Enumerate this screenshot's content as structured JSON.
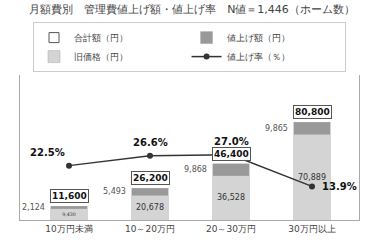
{
  "chart_data": {
    "type": "bar",
    "title": "月額費別　管理費値上げ額・値上げ率　N値＝1,446（ホーム数）",
    "categories": [
      "10万円未満",
      "10～20万円",
      "20～30万円",
      "30万円以上"
    ],
    "stacked": true,
    "data_labels": true,
    "grid": false,
    "legend": "top",
    "tick_labels": "x",
    "ylim": [
      0,
      120000
    ],
    "y2lim": [
      0,
      60
    ],
    "series": [
      {
        "name": "旧価格（円）",
        "type": "bar",
        "color": "#d4d4d4",
        "values": [
          9430,
          20678,
          36528,
          70889
        ],
        "value_labels": [
          "9,430",
          "20,678",
          "36,528",
          "70,889"
        ]
      },
      {
        "name": "値上げ額（円）",
        "type": "bar",
        "color": "#999999",
        "values": [
          2124,
          5493,
          9868,
          9865
        ],
        "value_labels": [
          "2,124",
          "5,493",
          "9,868",
          "9,865"
        ]
      },
      {
        "name": "値上げ率（％）",
        "type": "line",
        "axis": "y2",
        "color": "#333333",
        "marker": "circle",
        "values": [
          22.5,
          26.6,
          27.0,
          13.9
        ],
        "value_labels": [
          "22.5%",
          "26.6%",
          "27.0%",
          "13.9%"
        ]
      },
      {
        "name": "合計額（円）",
        "type": "label",
        "color": "#ffffff",
        "values": [
          11600,
          26200,
          46400,
          80800
        ],
        "value_labels": [
          "11,600",
          "26,200",
          "46,400",
          "80,800"
        ]
      }
    ]
  }
}
